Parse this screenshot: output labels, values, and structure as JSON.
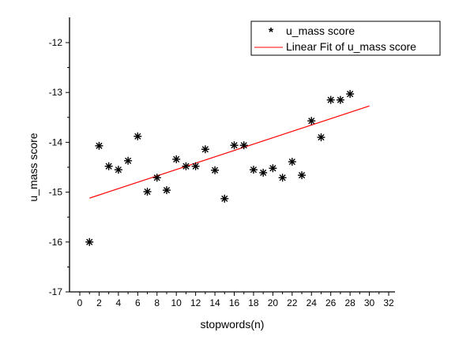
{
  "chart_data": {
    "type": "scatter",
    "xlabel": "stopwords(n)",
    "ylabel": "u_mass score",
    "xlim": [
      -1,
      32.7
    ],
    "ylim": [
      -17,
      -12
    ],
    "xticks": [
      0,
      2,
      4,
      6,
      8,
      10,
      12,
      14,
      16,
      18,
      20,
      22,
      24,
      26,
      28,
      30,
      32
    ],
    "yticks": [
      -12,
      -13,
      -14,
      -15,
      -16,
      -17
    ],
    "series": [
      {
        "name": "u_mass score",
        "marker": "asterisk",
        "color": "#000000",
        "x": [
          1,
          2,
          3,
          4,
          5,
          6,
          7,
          8,
          9,
          10,
          11,
          12,
          13,
          14,
          15,
          16,
          17,
          18,
          19,
          20,
          21,
          22,
          23,
          24,
          25,
          26,
          27,
          28
        ],
        "y": [
          -16.0,
          -14.07,
          -14.48,
          -14.55,
          -14.37,
          -13.88,
          -14.99,
          -14.71,
          -14.96,
          -14.34,
          -14.48,
          -14.48,
          -14.14,
          -14.56,
          -15.13,
          -14.06,
          -14.06,
          -14.55,
          -14.61,
          -14.52,
          -14.71,
          -14.39,
          -14.66,
          -13.57,
          -13.9,
          -13.15,
          -13.15,
          -13.03
        ]
      },
      {
        "name": "Linear Fit of u_mass score",
        "type": "line",
        "color": "#ff0000",
        "x": [
          1,
          30
        ],
        "y": [
          -15.12,
          -13.27
        ]
      }
    ],
    "legend": "top-right"
  }
}
